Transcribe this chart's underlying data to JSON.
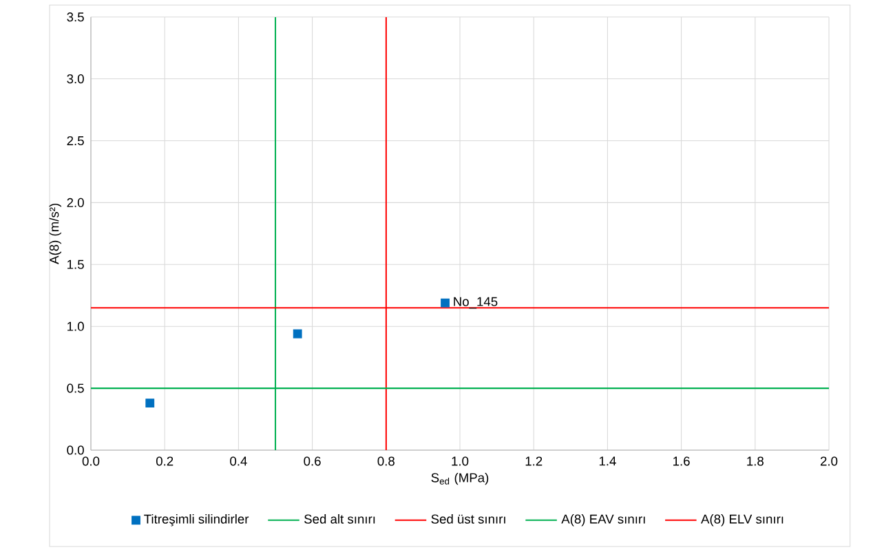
{
  "chart_data": {
    "type": "scatter",
    "xlabel": "S$_{ed}$ (MPa)",
    "ylabel": "A(8) (m/s²)",
    "xlim": [
      0,
      2
    ],
    "xticks": [
      {
        "value": 0,
        "label": "0.0"
      },
      {
        "value": 0.2,
        "label": "0.2"
      },
      {
        "value": 0.4,
        "label": "0.4"
      },
      {
        "value": 0.6,
        "label": "0.6"
      },
      {
        "value": 0.8,
        "label": "0.8"
      },
      {
        "value": 1,
        "label": "1.0"
      },
      {
        "value": 1.2,
        "label": "1.2"
      },
      {
        "value": 1.4,
        "label": "1.4"
      },
      {
        "value": 1.6,
        "label": "1.6"
      },
      {
        "value": 1.8,
        "label": "1.8"
      },
      {
        "value": 2,
        "label": "2.0"
      }
    ],
    "ylim": [
      0,
      3.5
    ],
    "yticks": [
      {
        "value": 0,
        "label": "0.0"
      },
      {
        "value": 0.5,
        "label": "0.5"
      },
      {
        "value": 1,
        "label": "1.0"
      },
      {
        "value": 1.5,
        "label": "1.5"
      },
      {
        "value": 2,
        "label": "2.0"
      },
      {
        "value": 2.5,
        "label": "2.5"
      },
      {
        "value": 3,
        "label": "3.0"
      },
      {
        "value": 3.5,
        "label": "3.5"
      }
    ],
    "grid": true,
    "legend": "bottom",
    "marker": "square",
    "series": [
      {
        "name": "Titreşimli silindirler",
        "color": "#0070c0",
        "x": [
          0.16,
          0.56,
          0.96
        ],
        "values": [
          0.38,
          0.94,
          1.19
        ]
      }
    ],
    "ref_lines": [
      {
        "axis": "x",
        "value": 0.5,
        "label": "Sed alt sınırı",
        "color": "#00b050"
      },
      {
        "axis": "x",
        "value": 0.8,
        "label": "Sed üst sınırı",
        "color": "#ff0000"
      },
      {
        "axis": "y",
        "value": 0.5,
        "label": "A(8) EAV sınırı",
        "color": "#00b050"
      },
      {
        "axis": "y",
        "value": 1.15,
        "label": "A(8) ELV sınırı",
        "color": "#ff0000"
      }
    ],
    "annotations": [
      {
        "text": "No_145",
        "x": 0.96,
        "y": 1.19
      }
    ]
  }
}
